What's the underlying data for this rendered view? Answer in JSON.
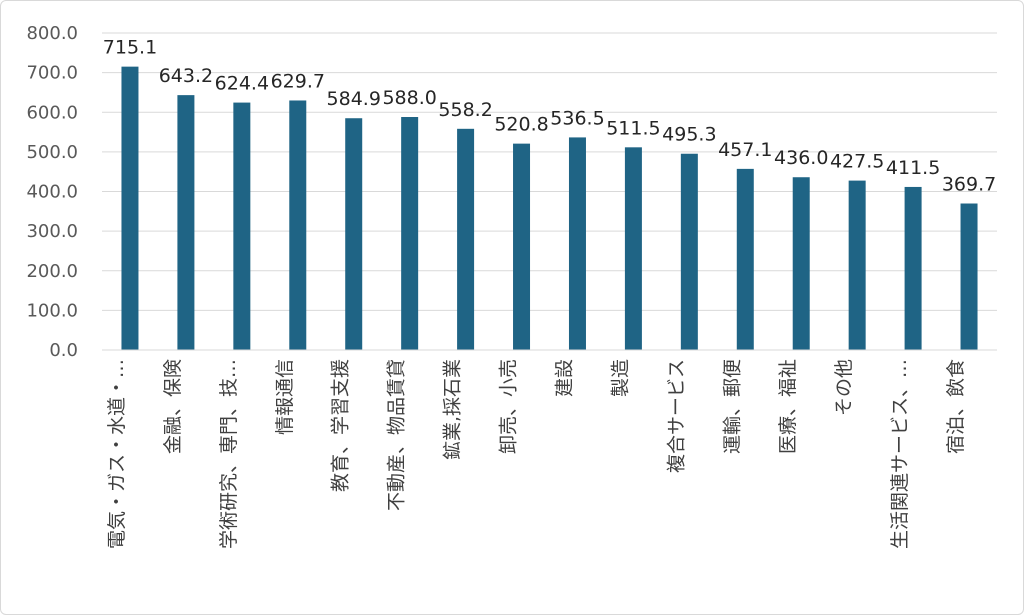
{
  "chart_data": {
    "type": "bar",
    "title": "",
    "xlabel": "",
    "ylabel": "",
    "ylim": [
      0,
      800
    ],
    "yticks": [
      "0.0",
      "100.0",
      "200.0",
      "300.0",
      "400.0",
      "500.0",
      "600.0",
      "700.0",
      "800.0"
    ],
    "grid": true,
    "legend": "none",
    "bar_color": "#1f6485",
    "categories": [
      "電気・ガス・水道・…",
      "金融、保険",
      "学術研究、専門、技…",
      "情報通信",
      "教育、学習支援",
      "不動産、物品賃貸",
      "鉱業,採石業",
      "卸売、小売",
      "建設",
      "製造",
      "複合サービス",
      "運輸、郵便",
      "医療、福祉",
      "その他",
      "生活関連サービス、…",
      "宿泊、飲食"
    ],
    "values": [
      715.1,
      643.2,
      624.4,
      629.7,
      584.9,
      588.0,
      558.2,
      520.8,
      536.5,
      511.5,
      495.3,
      457.1,
      436.0,
      427.5,
      411.5,
      369.7
    ],
    "data_labels": [
      "715.1",
      "643.2",
      "624.4",
      "629.7",
      "584.9",
      "588.0",
      "558.2",
      "520.8",
      "536.5",
      "511.5",
      "495.3",
      "457.1",
      "436.0",
      "427.5",
      "411.5",
      "369.7"
    ]
  }
}
